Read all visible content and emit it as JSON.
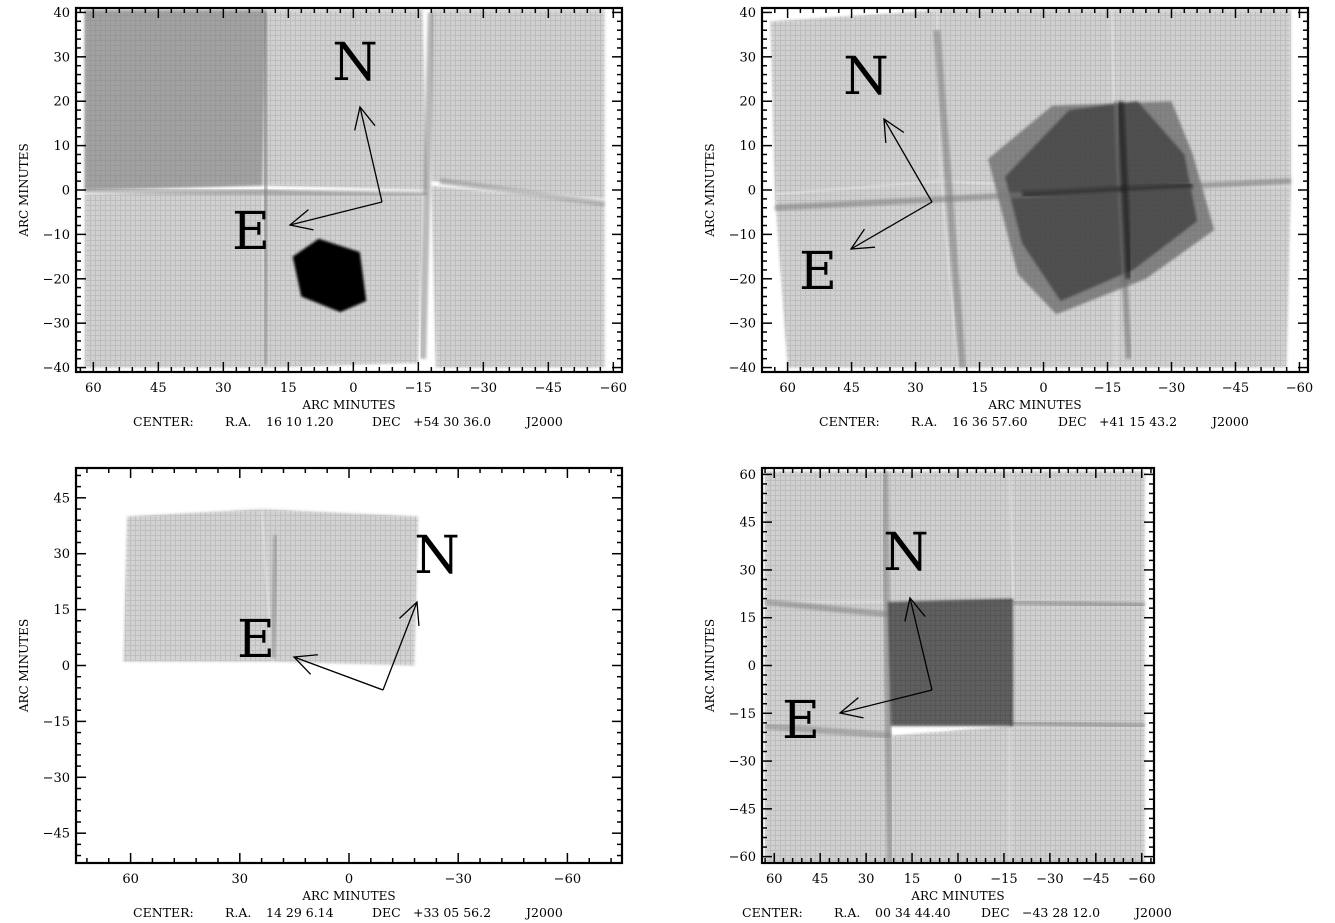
{
  "chart_data": [
    {
      "type": "image",
      "xlabel": "ARC MINUTES",
      "ylabel": "ARC MINUTES",
      "caption": {
        "prefix": "CENTER:",
        "ra_label": "R.A.",
        "ra": "16 10  1.20",
        "dec_label": "DEC",
        "dec": "+54 30 36.0",
        "epoch": "J2000"
      },
      "xlim": [
        64,
        -62
      ],
      "ylim": [
        -41,
        41
      ],
      "xticks": [
        60,
        45,
        30,
        15,
        0,
        -15,
        -30,
        -45,
        -60
      ],
      "yticks": [
        40,
        30,
        20,
        10,
        0,
        -10,
        -20,
        -30,
        -40
      ],
      "compass": {
        "north_label": "N",
        "east_label": "E"
      },
      "background_color": "#d0d0d0",
      "grid": false
    },
    {
      "type": "image",
      "xlabel": "ARC MINUTES",
      "ylabel": "ARC MINUTES",
      "caption": {
        "prefix": "CENTER:",
        "ra_label": "R.A.",
        "ra": "16 36 57.60",
        "dec_label": "DEC",
        "dec": "+41 15 43.2",
        "epoch": "J2000"
      },
      "xlim": [
        66,
        -62
      ],
      "ylim": [
        -41,
        41
      ],
      "xticks": [
        60,
        45,
        30,
        15,
        0,
        -15,
        -30,
        -45,
        -60
      ],
      "yticks": [
        40,
        30,
        20,
        10,
        0,
        -10,
        -20,
        -30,
        -40
      ],
      "compass": {
        "north_label": "N",
        "east_label": "E"
      },
      "background_color": "#d0d0d0",
      "grid": false
    },
    {
      "type": "image",
      "xlabel": "ARC MINUTES",
      "ylabel": "ARC MINUTES",
      "caption": {
        "prefix": "CENTER:",
        "ra_label": "R.A.",
        "ra": "14 29  6.14",
        "dec_label": "DEC",
        "dec": "+33 05 56.2",
        "epoch": "J2000"
      },
      "xlim": [
        75,
        -75
      ],
      "ylim": [
        -53,
        53
      ],
      "xticks": [
        60,
        30,
        0,
        -30,
        -60
      ],
      "yticks": [
        45,
        30,
        15,
        0,
        -15,
        -30,
        -45
      ],
      "compass": {
        "north_label": "N",
        "east_label": "E"
      },
      "background_color": "#ffffff",
      "grid": false
    },
    {
      "type": "image",
      "xlabel": "ARC MINUTES",
      "ylabel": "ARC MINUTES",
      "caption": {
        "prefix": "CENTER:",
        "ra_label": "R.A.",
        "ra": "00 34 44.40",
        "dec_label": "DEC",
        "dec": "−43 28 12.0",
        "epoch": "J2000"
      },
      "xlim": [
        64,
        -64
      ],
      "ylim": [
        -62,
        62
      ],
      "xticks": [
        60,
        45,
        30,
        15,
        0,
        -15,
        -30,
        -45,
        -60
      ],
      "yticks": [
        60,
        45,
        30,
        15,
        0,
        -15,
        -30,
        -45,
        -60
      ],
      "compass": {
        "north_label": "N",
        "east_label": "E"
      },
      "background_color": "#d0d0d0",
      "grid": false
    }
  ]
}
